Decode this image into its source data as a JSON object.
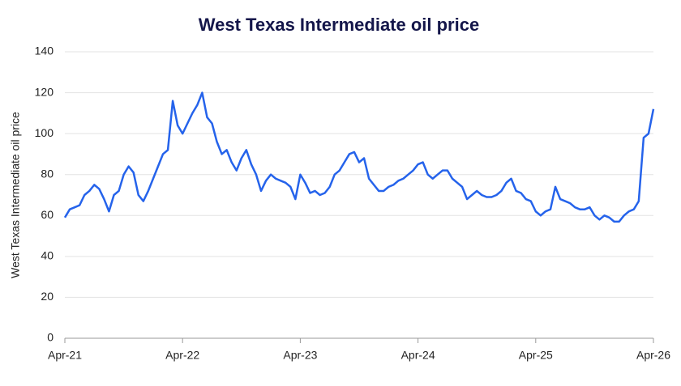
{
  "chart_data": {
    "type": "line",
    "title": "West Texas Intermediate oil price",
    "y_label": "West Texas Intermediate oil price",
    "categories": [
      "Apr-21",
      null,
      null,
      null,
      null,
      null,
      null,
      null,
      null,
      null,
      null,
      null,
      null,
      null,
      null,
      null,
      null,
      null,
      null,
      null,
      null,
      null,
      null,
      null,
      "Apr-22",
      null,
      null,
      null,
      null,
      null,
      null,
      null,
      null,
      null,
      null,
      null,
      null,
      null,
      null,
      null,
      null,
      null,
      null,
      null,
      null,
      null,
      null,
      null,
      "Apr-23",
      null,
      null,
      null,
      null,
      null,
      null,
      null,
      null,
      null,
      null,
      null,
      null,
      null,
      null,
      null,
      null,
      null,
      null,
      null,
      null,
      null,
      null,
      null,
      "Apr-24",
      null,
      null,
      null,
      null,
      null,
      null,
      null,
      null,
      null,
      null,
      null,
      null,
      null,
      null,
      null,
      null,
      null,
      null,
      null,
      null,
      null,
      null,
      null,
      "Apr-25",
      null,
      null,
      null,
      null,
      null,
      null,
      null,
      null,
      null,
      null,
      null,
      null,
      null,
      null,
      null,
      null,
      null,
      null,
      null,
      null,
      null,
      null,
      null,
      "Apr-26"
    ],
    "values": [
      59,
      63,
      64,
      65,
      70,
      72,
      75,
      73,
      68,
      62,
      70,
      72,
      80,
      84,
      81,
      70,
      67,
      72,
      78,
      84,
      90,
      92,
      116,
      104,
      100,
      105,
      110,
      114,
      120,
      108,
      105,
      96,
      90,
      92,
      86,
      82,
      88,
      92,
      85,
      80,
      72,
      77,
      80,
      78,
      77,
      76,
      74,
      68,
      80,
      76,
      71,
      72,
      70,
      71,
      74,
      80,
      82,
      86,
      90,
      91,
      86,
      88,
      78,
      75,
      72,
      72,
      74,
      75,
      77,
      78,
      80,
      82,
      85,
      86,
      80,
      78,
      80,
      82,
      82,
      78,
      76,
      74,
      68,
      70,
      72,
      70,
      69,
      69,
      70,
      72,
      76,
      78,
      72,
      71,
      68,
      67,
      62,
      60,
      62,
      63,
      74,
      68,
      67,
      66,
      64,
      63,
      63,
      64,
      60,
      58,
      60,
      59,
      57,
      57,
      60,
      62,
      63,
      67,
      98,
      100,
      112
    ],
    "color": "#2563eb",
    "ylim": [
      0,
      140
    ],
    "yticks": [
      0,
      20,
      40,
      60,
      80,
      100,
      120,
      140
    ],
    "grid": true
  }
}
